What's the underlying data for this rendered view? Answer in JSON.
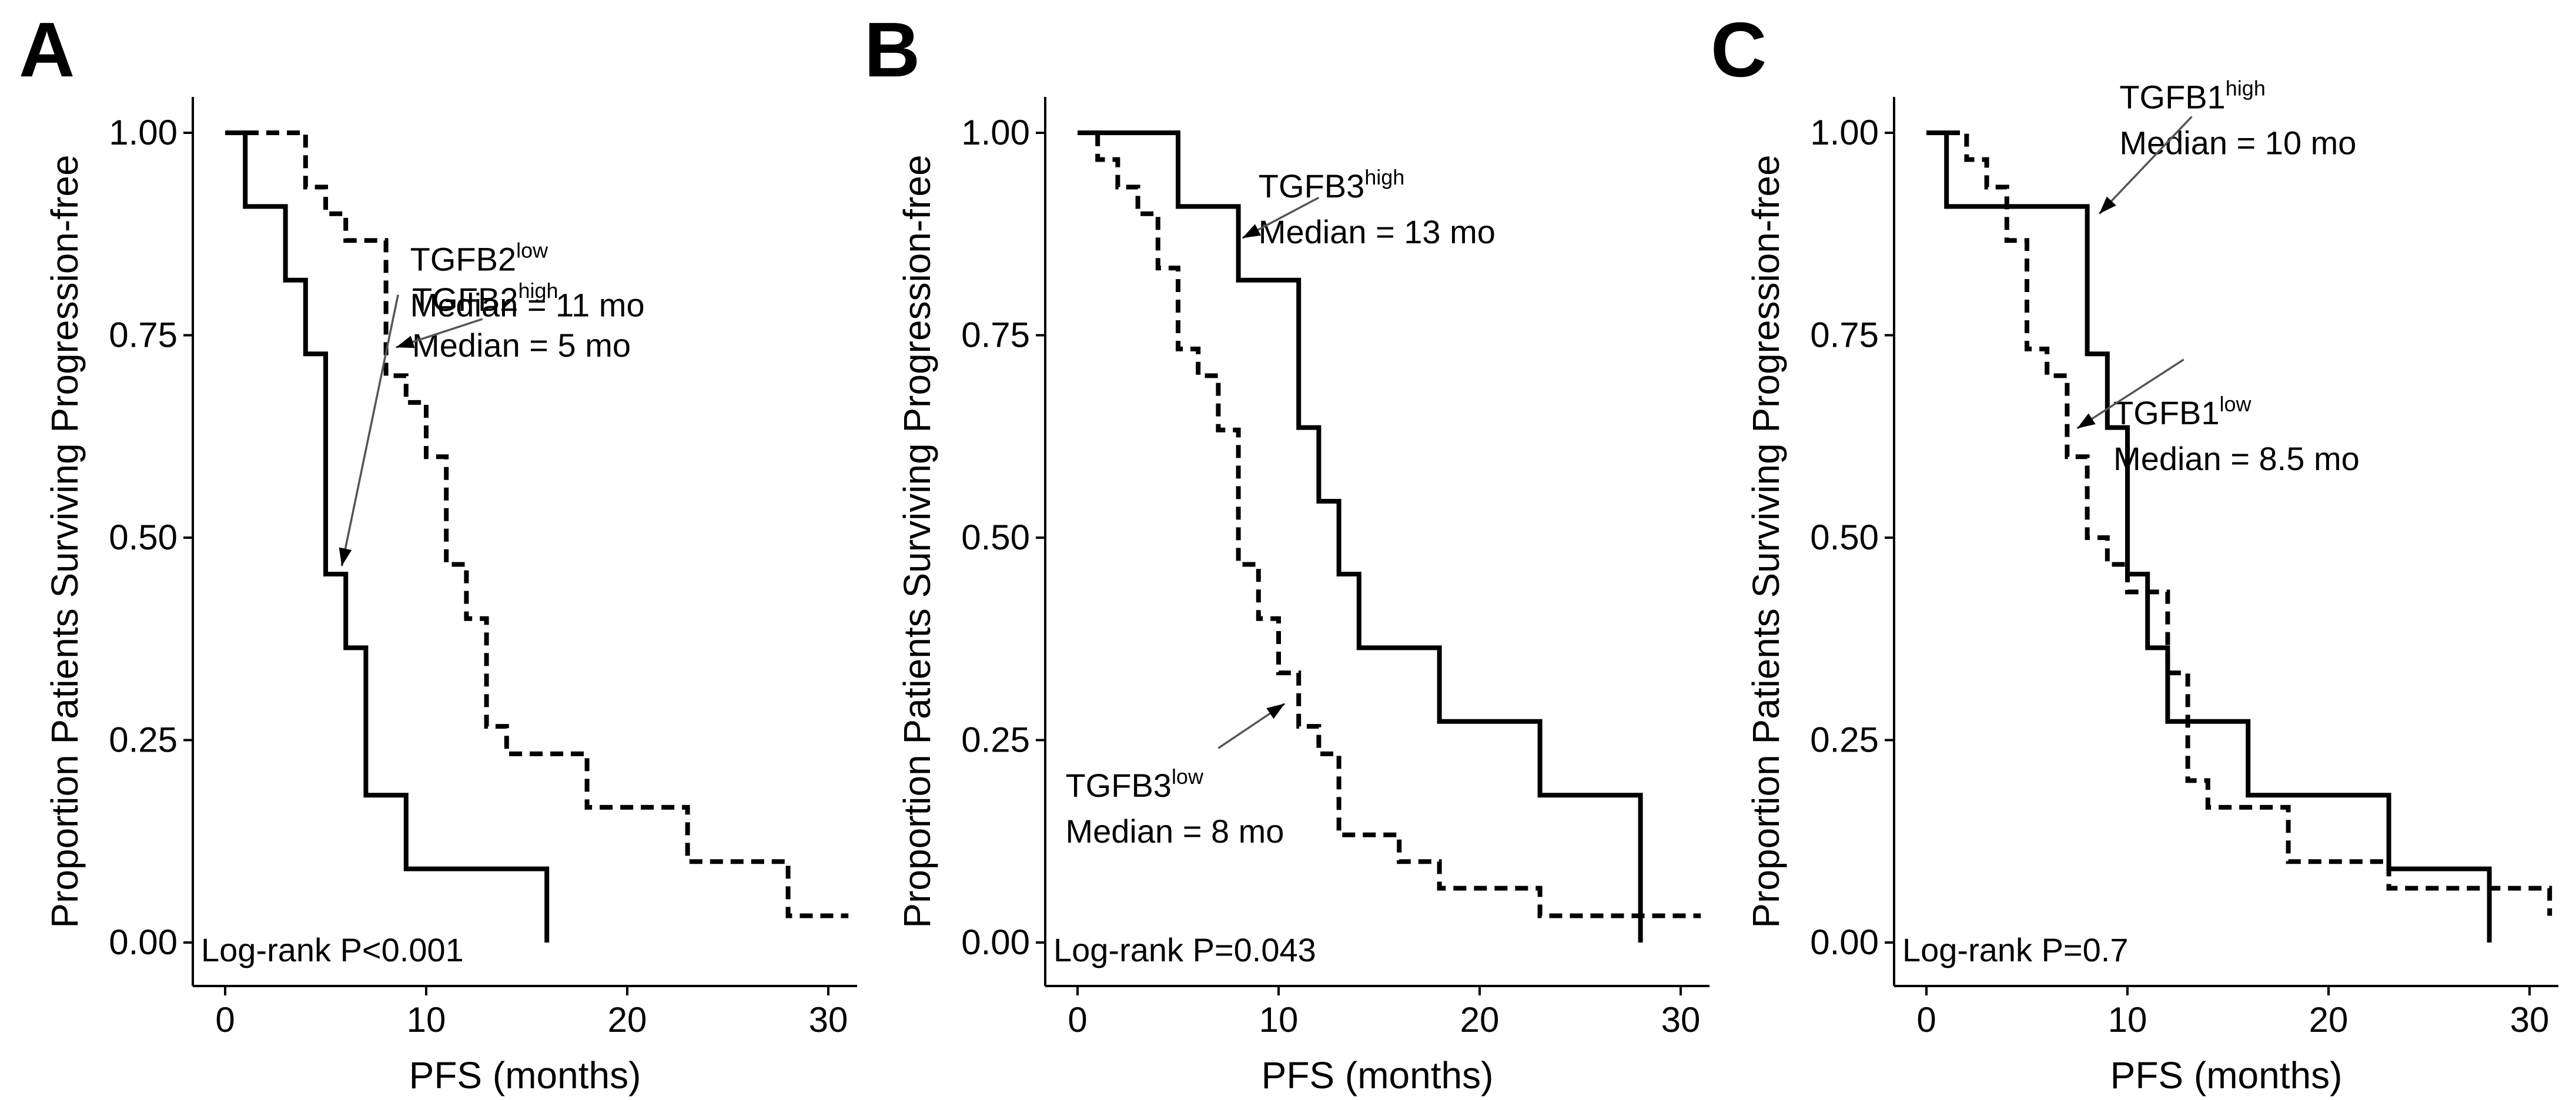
{
  "chart_data": [
    {
      "type": "line",
      "panel": "A",
      "xlabel": "PFS (months)",
      "ylabel": "Proportion Patients Surviving Progression-free",
      "xlim": [
        0,
        32
      ],
      "ylim": [
        0,
        1.05
      ],
      "xticks": [
        0,
        10,
        20,
        30
      ],
      "xtick_labels": [
        "0",
        "10",
        "20",
        "30"
      ],
      "yticks": [
        0,
        0.25,
        0.5,
        0.75,
        1.0
      ],
      "ytick_labels": [
        "0.00",
        "0.25",
        "0.50",
        "0.75",
        "1.00"
      ],
      "annotation": "Log-rank P<0.001",
      "series": [
        {
          "name": "TGFB2high",
          "base": "TGFB2",
          "sup": "high",
          "median": "Median = 5 mo",
          "style": "solid",
          "x": [
            0,
            1,
            3,
            4,
            5,
            6,
            7,
            9,
            16
          ],
          "y": [
            1.0,
            0.909,
            0.818,
            0.727,
            0.455,
            0.364,
            0.182,
            0.091,
            0.0
          ]
        },
        {
          "name": "TGFB2low",
          "base": "TGFB2",
          "sup": "low",
          "median": "Median = 11 mo",
          "style": "dashed",
          "x": [
            0,
            4,
            5,
            6,
            8,
            9,
            10,
            11,
            12,
            13,
            14,
            18,
            23,
            28,
            31
          ],
          "y": [
            1.0,
            0.933,
            0.9,
            0.867,
            0.7,
            0.667,
            0.6,
            0.467,
            0.4,
            0.267,
            0.233,
            0.167,
            0.1,
            0.033,
            0.033
          ]
        }
      ]
    },
    {
      "type": "line",
      "panel": "B",
      "xlabel": "PFS (months)",
      "ylabel": "Proportion Patients Surviving Progression-free",
      "xlim": [
        0,
        32
      ],
      "ylim": [
        0,
        1.05
      ],
      "xticks": [
        0,
        10,
        20,
        30
      ],
      "xtick_labels": [
        "0",
        "10",
        "20",
        "30"
      ],
      "yticks": [
        0,
        0.25,
        0.5,
        0.75,
        1.0
      ],
      "ytick_labels": [
        "0.00",
        "0.25",
        "0.50",
        "0.75",
        "1.00"
      ],
      "annotation": "Log-rank P=0.043",
      "series": [
        {
          "name": "TGFB3high",
          "base": "TGFB3",
          "sup": "high",
          "median": "Median = 13 mo",
          "style": "solid",
          "x": [
            0,
            5,
            8,
            11,
            12,
            13,
            14,
            18,
            23,
            28
          ],
          "y": [
            1.0,
            0.909,
            0.818,
            0.636,
            0.545,
            0.455,
            0.364,
            0.273,
            0.182,
            0.0
          ]
        },
        {
          "name": "TGFB3low",
          "base": "TGFB3",
          "sup": "low",
          "median": "Median = 8 mo",
          "style": "dashed",
          "x": [
            0,
            1,
            2,
            3,
            4,
            5,
            6,
            7,
            8,
            9,
            10,
            11,
            12,
            13,
            16,
            18,
            23,
            31
          ],
          "y": [
            1.0,
            0.967,
            0.933,
            0.9,
            0.833,
            0.733,
            0.7,
            0.633,
            0.467,
            0.4,
            0.333,
            0.267,
            0.233,
            0.133,
            0.1,
            0.067,
            0.033,
            0.033
          ]
        }
      ]
    },
    {
      "type": "line",
      "panel": "C",
      "xlabel": "PFS (months)",
      "ylabel": "Proportion Patients Surviving Progression-free",
      "xlim": [
        0,
        32
      ],
      "ylim": [
        0,
        1.05
      ],
      "xticks": [
        0,
        10,
        20,
        30
      ],
      "xtick_labels": [
        "0",
        "10",
        "20",
        "30"
      ],
      "yticks": [
        0,
        0.25,
        0.5,
        0.75,
        1.0
      ],
      "ytick_labels": [
        "0.00",
        "0.25",
        "0.50",
        "0.75",
        "1.00"
      ],
      "annotation": "Log-rank P=0.7",
      "series": [
        {
          "name": "TGFB1high",
          "base": "TGFB1",
          "sup": "high",
          "median": "Median = 10 mo",
          "style": "solid",
          "x": [
            0,
            1,
            8,
            9,
            10,
            11,
            12,
            16,
            23,
            28
          ],
          "y": [
            1.0,
            0.909,
            0.727,
            0.636,
            0.455,
            0.364,
            0.273,
            0.182,
            0.091,
            0.0
          ]
        },
        {
          "name": "TGFB1low",
          "base": "TGFB1",
          "sup": "low",
          "median": "Median = 8.5 mo",
          "style": "dashed",
          "x": [
            0,
            2,
            3,
            4,
            5,
            6,
            7,
            8,
            9,
            10,
            12,
            13,
            14,
            18,
            23,
            31
          ],
          "y": [
            1.0,
            0.967,
            0.933,
            0.867,
            0.733,
            0.7,
            0.6,
            0.5,
            0.467,
            0.433,
            0.333,
            0.2,
            0.167,
            0.1,
            0.067,
            0.033
          ]
        }
      ]
    }
  ]
}
